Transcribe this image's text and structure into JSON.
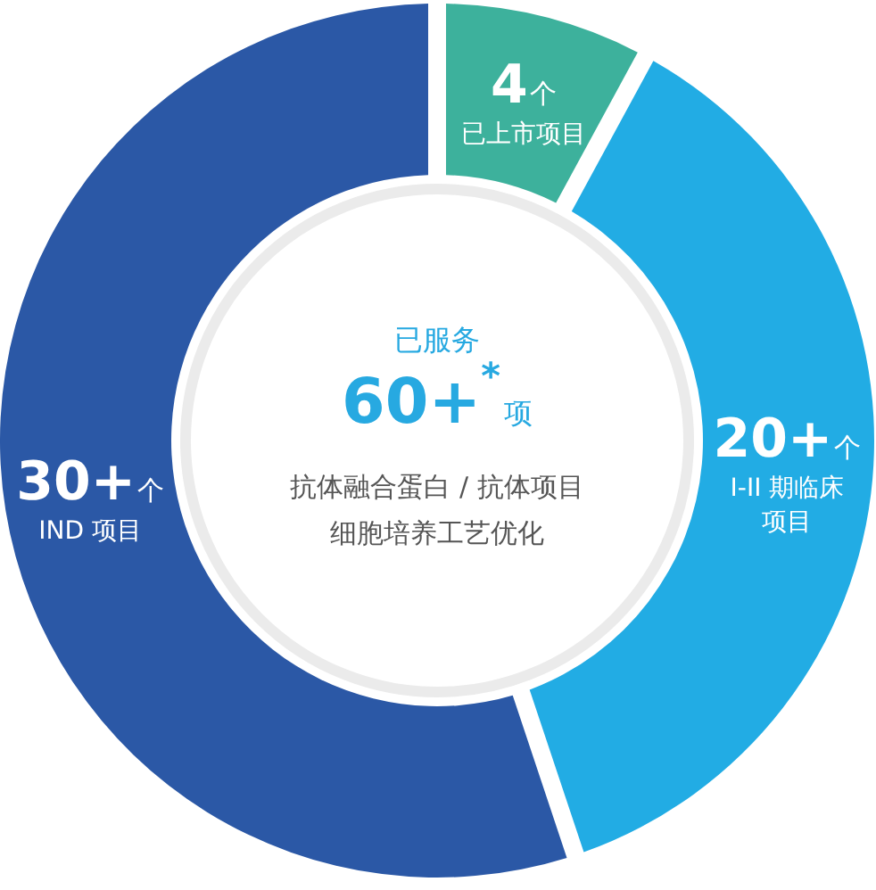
{
  "chart_data": {
    "type": "donut",
    "categories": [
      "已上市项目",
      "I-II 期临床项目",
      "IND 项目"
    ],
    "values": [
      4,
      20,
      30
    ],
    "colors": [
      "#3db19c",
      "#22ace4",
      "#2b58a6"
    ],
    "value_labels": [
      "4个",
      "20+个",
      "30+个"
    ],
    "annotations": [
      "已服务",
      "60+$^{*}$项",
      "抗体融合蛋白 / 抗体项目",
      "细胞培养工艺优化"
    ]
  }
}
